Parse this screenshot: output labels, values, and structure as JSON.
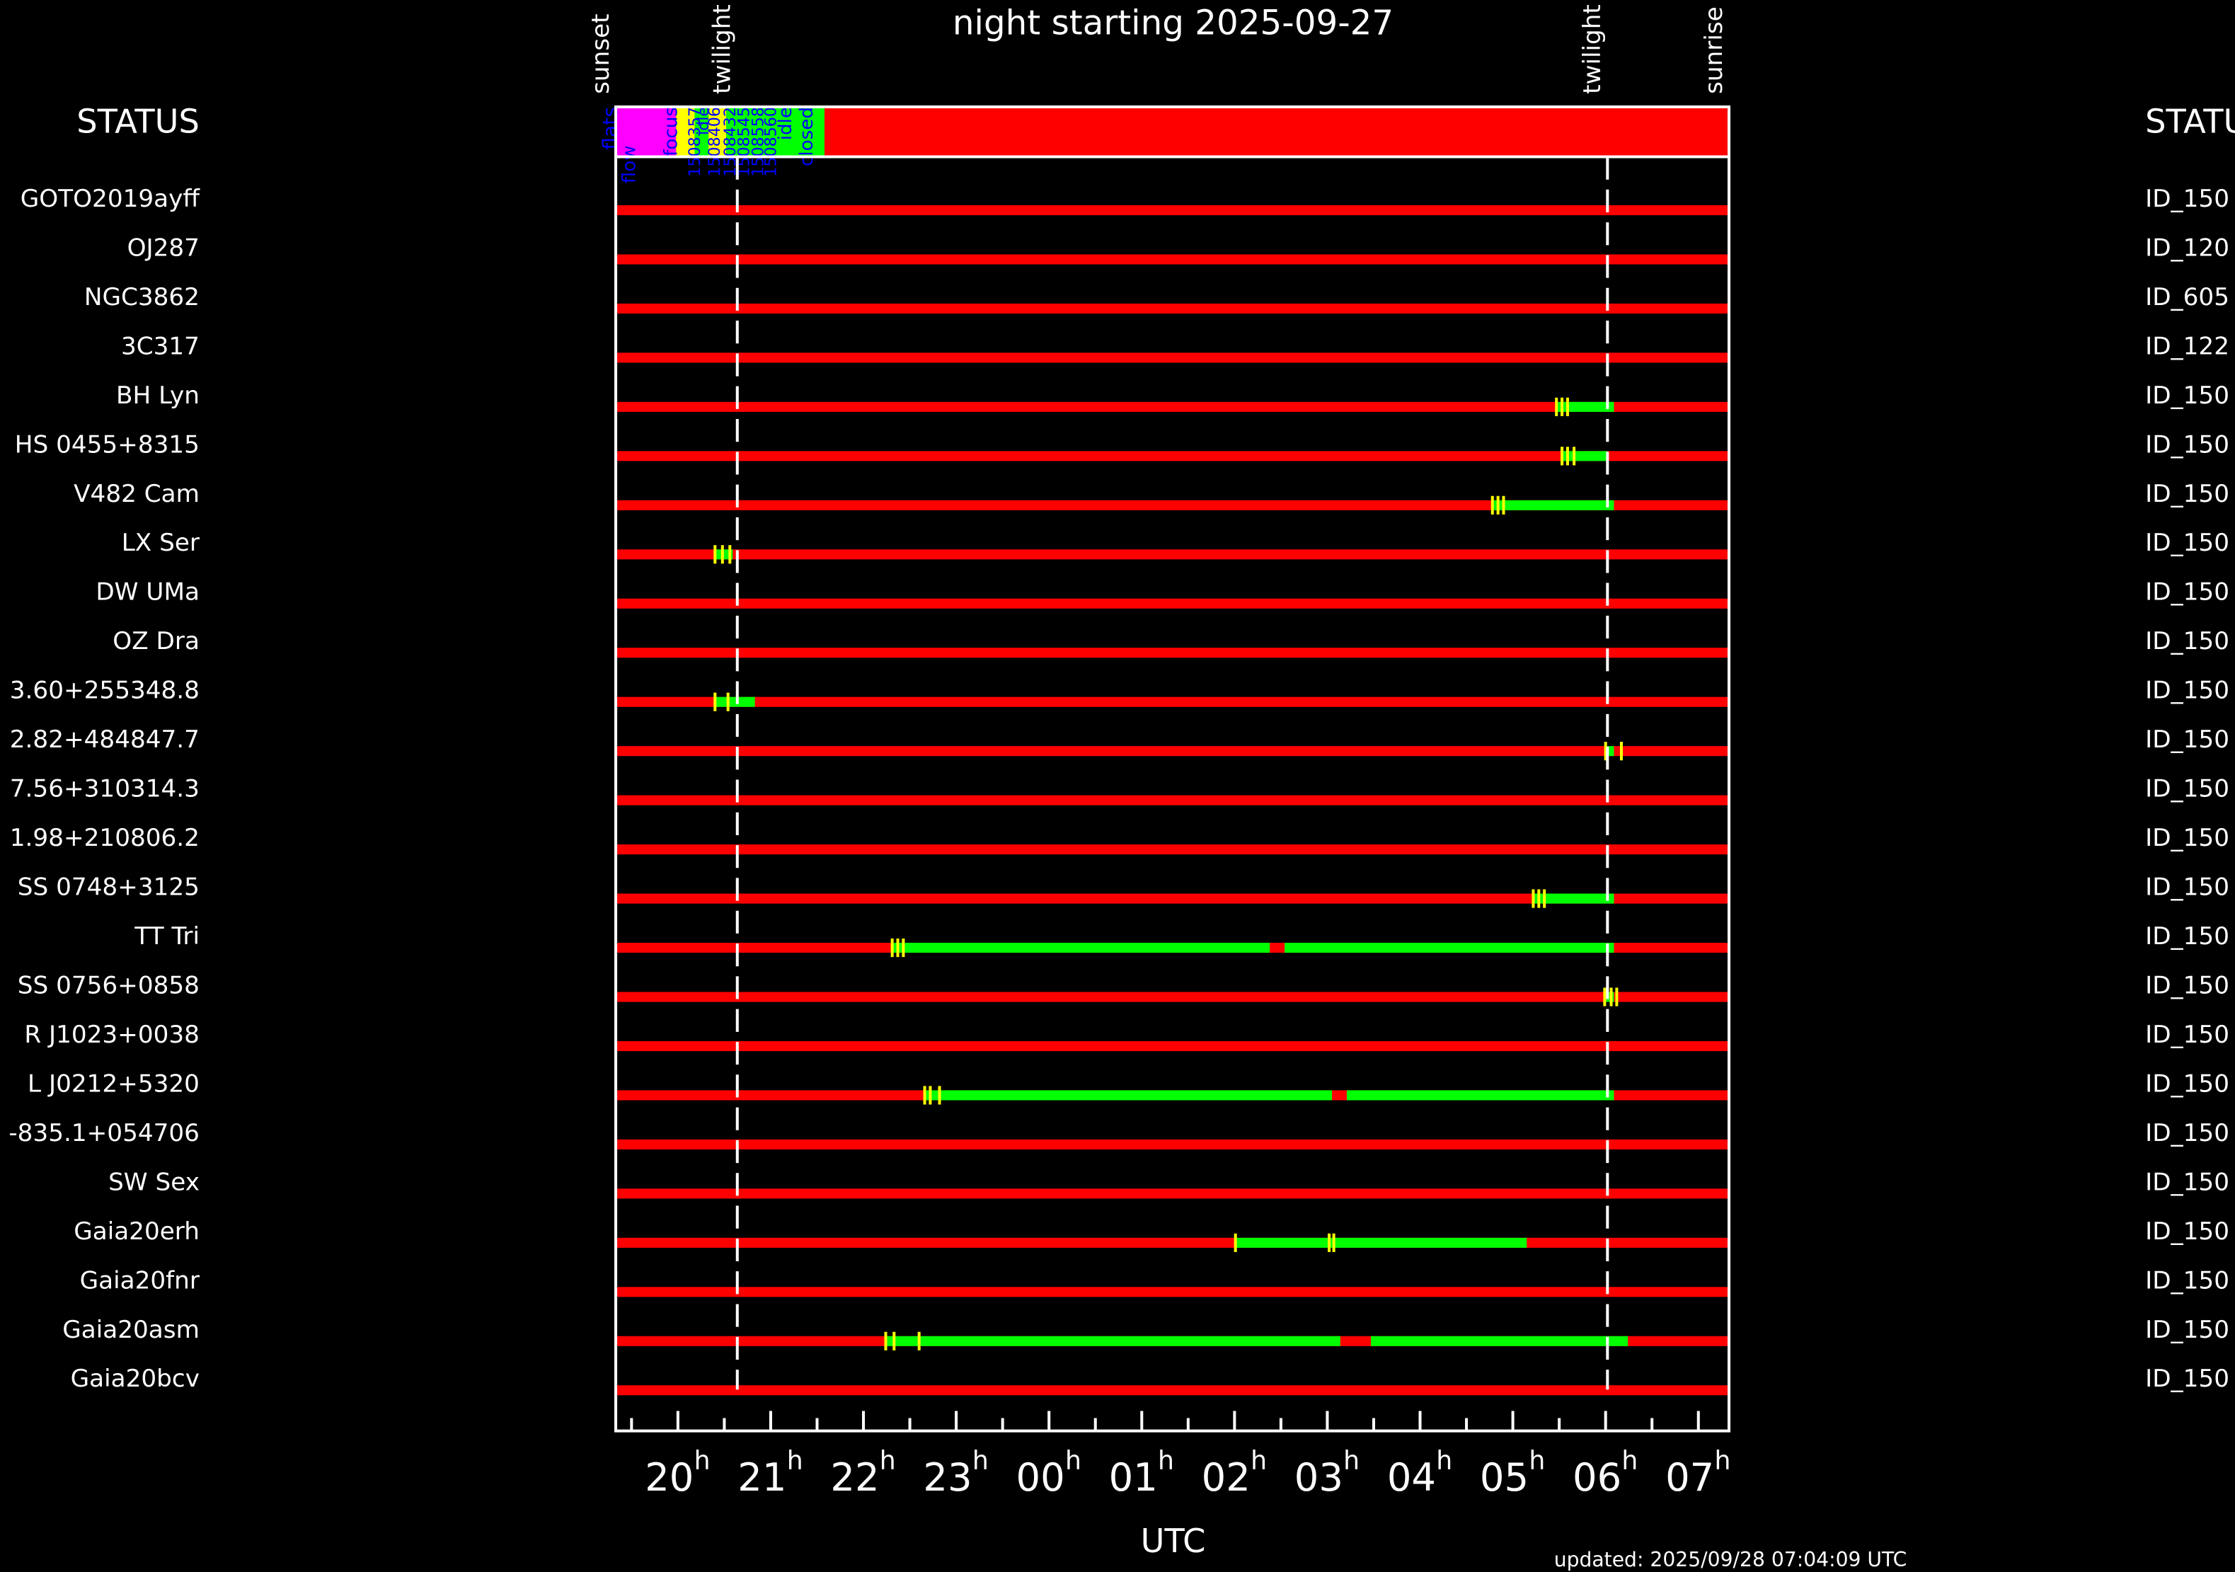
{
  "chart_data": {
    "type": "timeline",
    "title": "night starting 2025-09-27",
    "xlabel": "UTC",
    "x_unit_suffix": "h",
    "x_ticks": [
      "20",
      "21",
      "22",
      "23",
      "00",
      "01",
      "02",
      "03",
      "04",
      "05",
      "06",
      "07"
    ],
    "x_tick_hours": [
      20,
      21,
      22,
      23,
      24,
      25,
      26,
      27,
      28,
      29,
      30,
      31
    ],
    "xlim": [
      19.33,
      31.33
    ],
    "left_header": "STATUS",
    "right_header": "STATUS",
    "updated": "updated: 2025/09/28 07:04:09 UTC",
    "night_markers": [
      {
        "label": "sunset",
        "t": 19.33,
        "line": false
      },
      {
        "label": "twilight",
        "t": 20.64,
        "line": true
      },
      {
        "label": "twilight",
        "t": 30.02,
        "line": true
      },
      {
        "label": "sunrise",
        "t": 31.33,
        "line": false
      }
    ],
    "status_bar": {
      "segments": [
        {
          "t0": 19.33,
          "t1": 19.98,
          "color": "#ff00ff"
        },
        {
          "t0": 19.98,
          "t1": 20.18,
          "color": "#ffff00"
        },
        {
          "t0": 20.18,
          "t1": 20.33,
          "color": "#00ff00"
        },
        {
          "t0": 20.33,
          "t1": 20.52,
          "color": "#ffff00"
        },
        {
          "t0": 20.52,
          "t1": 21.58,
          "color": "#00ff00"
        },
        {
          "t0": 21.58,
          "t1": 31.33,
          "color": "#ff0000"
        }
      ],
      "labels": [
        {
          "text": "flats",
          "t": 19.27,
          "font": 14
        },
        {
          "text": "flow",
          "t": 19.47,
          "font": 13,
          "top": true
        },
        {
          "text": "focus",
          "t": 19.92,
          "font": 13
        },
        {
          "text": "1508357",
          "t": 20.18,
          "font": 11
        },
        {
          "text": "idle",
          "t": 20.27,
          "font": 11
        },
        {
          "text": "1508406",
          "t": 20.39,
          "font": 11
        },
        {
          "text": "1508432",
          "t": 20.56,
          "font": 11
        },
        {
          "text": "1508545",
          "t": 20.71,
          "font": 11
        },
        {
          "text": "1508558",
          "t": 20.86,
          "font": 11
        },
        {
          "text": "1508560",
          "t": 21.0,
          "font": 11
        },
        {
          "text": "idle",
          "t": 21.15,
          "font": 13
        },
        {
          "text": "closed",
          "t": 21.38,
          "font": 13
        }
      ]
    },
    "rows": [
      {
        "name": "GOTO2019ayff",
        "status": "ID_150",
        "green": [],
        "ticks": []
      },
      {
        "name": "OJ287",
        "status": "ID_120",
        "green": [],
        "ticks": []
      },
      {
        "name": "NGC3862",
        "status": "ID_605",
        "green": [],
        "ticks": []
      },
      {
        "name": "3C317",
        "status": "ID_122",
        "green": [],
        "ticks": []
      },
      {
        "name": "BH Lyn",
        "status": "ID_150",
        "green": [
          [
            29.46,
            30.09
          ]
        ],
        "ticks": [
          29.47,
          29.53,
          29.59
        ]
      },
      {
        "name": "HS 0455+8315",
        "status": "ID_150",
        "green": [
          [
            29.53,
            30.02
          ]
        ],
        "ticks": [
          29.53,
          29.59,
          29.66
        ]
      },
      {
        "name": "V482 Cam",
        "status": "ID_150",
        "green": [
          [
            28.78,
            30.09
          ]
        ],
        "ticks": [
          28.78,
          28.84,
          28.9
        ]
      },
      {
        "name": "LX Ser",
        "status": "ID_150",
        "green": [
          [
            20.4,
            20.59
          ]
        ],
        "ticks": [
          20.4,
          20.48,
          20.56
        ]
      },
      {
        "name": "DW UMa",
        "status": "ID_150",
        "green": [],
        "ticks": []
      },
      {
        "name": "OZ Dra",
        "status": "ID_150",
        "green": [],
        "ticks": []
      },
      {
        "name": "3.60+255348.8",
        "status": "ID_150",
        "green": [
          [
            20.4,
            20.83
          ]
        ],
        "ticks": [
          20.4,
          20.54
        ]
      },
      {
        "name": "2.82+484847.7",
        "status": "ID_150",
        "green": [
          [
            30.0,
            30.09
          ]
        ],
        "ticks": [
          30.0,
          30.17
        ]
      },
      {
        "name": "7.56+310314.3",
        "status": "ID_150",
        "green": [],
        "ticks": []
      },
      {
        "name": "1.98+210806.2",
        "status": "ID_150",
        "green": [],
        "ticks": []
      },
      {
        "name": "SS 0748+3125",
        "status": "ID_150",
        "green": [
          [
            29.21,
            30.09
          ]
        ],
        "ticks": [
          29.22,
          29.28,
          29.34
        ]
      },
      {
        "name": "TT Tri",
        "status": "ID_150",
        "green": [
          [
            22.3,
            26.38
          ],
          [
            26.54,
            30.09
          ]
        ],
        "ticks": [
          22.31,
          22.37,
          22.43
        ]
      },
      {
        "name": "SS 0756+0858",
        "status": "ID_150",
        "green": [
          [
            29.99,
            30.09
          ]
        ],
        "ticks": [
          29.99,
          30.06,
          30.12
        ]
      },
      {
        "name": "R J1023+0038",
        "status": "ID_150",
        "green": [],
        "ticks": []
      },
      {
        "name": "L J0212+5320",
        "status": "ID_150",
        "green": [
          [
            22.65,
            27.05
          ],
          [
            27.21,
            30.09
          ]
        ],
        "ticks": [
          22.66,
          22.72,
          22.82
        ]
      },
      {
        "name": "-835.1+054706",
        "status": "ID_150",
        "green": [],
        "ticks": []
      },
      {
        "name": "SW Sex",
        "status": "ID_150",
        "green": [],
        "ticks": []
      },
      {
        "name": "Gaia20erh",
        "status": "ID_150",
        "green": [
          [
            26.01,
            29.15
          ]
        ],
        "ticks": [
          26.01,
          27.02,
          27.07
        ]
      },
      {
        "name": "Gaia20fnr",
        "status": "ID_150",
        "green": [],
        "ticks": []
      },
      {
        "name": "Gaia20asm",
        "status": "ID_150",
        "green": [
          [
            22.24,
            27.14
          ],
          [
            27.47,
            30.24
          ]
        ],
        "ticks": [
          22.24,
          22.33,
          22.6
        ]
      },
      {
        "name": "Gaia20bcv",
        "status": "ID_150",
        "green": [],
        "ticks": []
      }
    ],
    "colors": {
      "observed": "#00ff00",
      "not_observed": "#ff0000",
      "tick": "#ffff00",
      "frame": "#ffffff",
      "label": "#0000ff",
      "background": "#000000"
    }
  }
}
